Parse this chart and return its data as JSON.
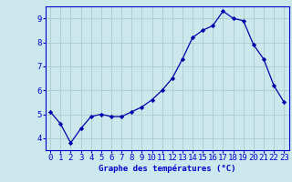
{
  "x": [
    0,
    1,
    2,
    3,
    4,
    5,
    6,
    7,
    8,
    9,
    10,
    11,
    12,
    13,
    14,
    15,
    16,
    17,
    18,
    19,
    20,
    21,
    22,
    23
  ],
  "y": [
    5.1,
    4.6,
    3.8,
    4.4,
    4.9,
    5.0,
    4.9,
    4.9,
    5.1,
    5.3,
    5.6,
    6.0,
    6.5,
    7.3,
    8.2,
    8.5,
    8.7,
    9.3,
    9.0,
    8.9,
    7.9,
    7.3,
    6.2,
    5.5
  ],
  "line_color": "#0000aa",
  "marker": "D",
  "marker_size": 2.2,
  "bg_color": "#cce8ec",
  "grid_color": "#aacccc",
  "xlabel": "Graphe des températures (°C)",
  "xlim": [
    -0.5,
    23.5
  ],
  "ylim": [
    3.5,
    9.5
  ],
  "yticks": [
    4,
    5,
    6,
    7,
    8,
    9
  ],
  "xticks": [
    0,
    1,
    2,
    3,
    4,
    5,
    6,
    7,
    8,
    9,
    10,
    11,
    12,
    13,
    14,
    15,
    16,
    17,
    18,
    19,
    20,
    21,
    22,
    23
  ],
  "xlabel_color": "#0000cc",
  "xlabel_fontsize": 6.5,
  "tick_fontsize": 6.5,
  "tick_color": "#0000cc",
  "axis_color": "#0000cc",
  "line_width": 0.9
}
